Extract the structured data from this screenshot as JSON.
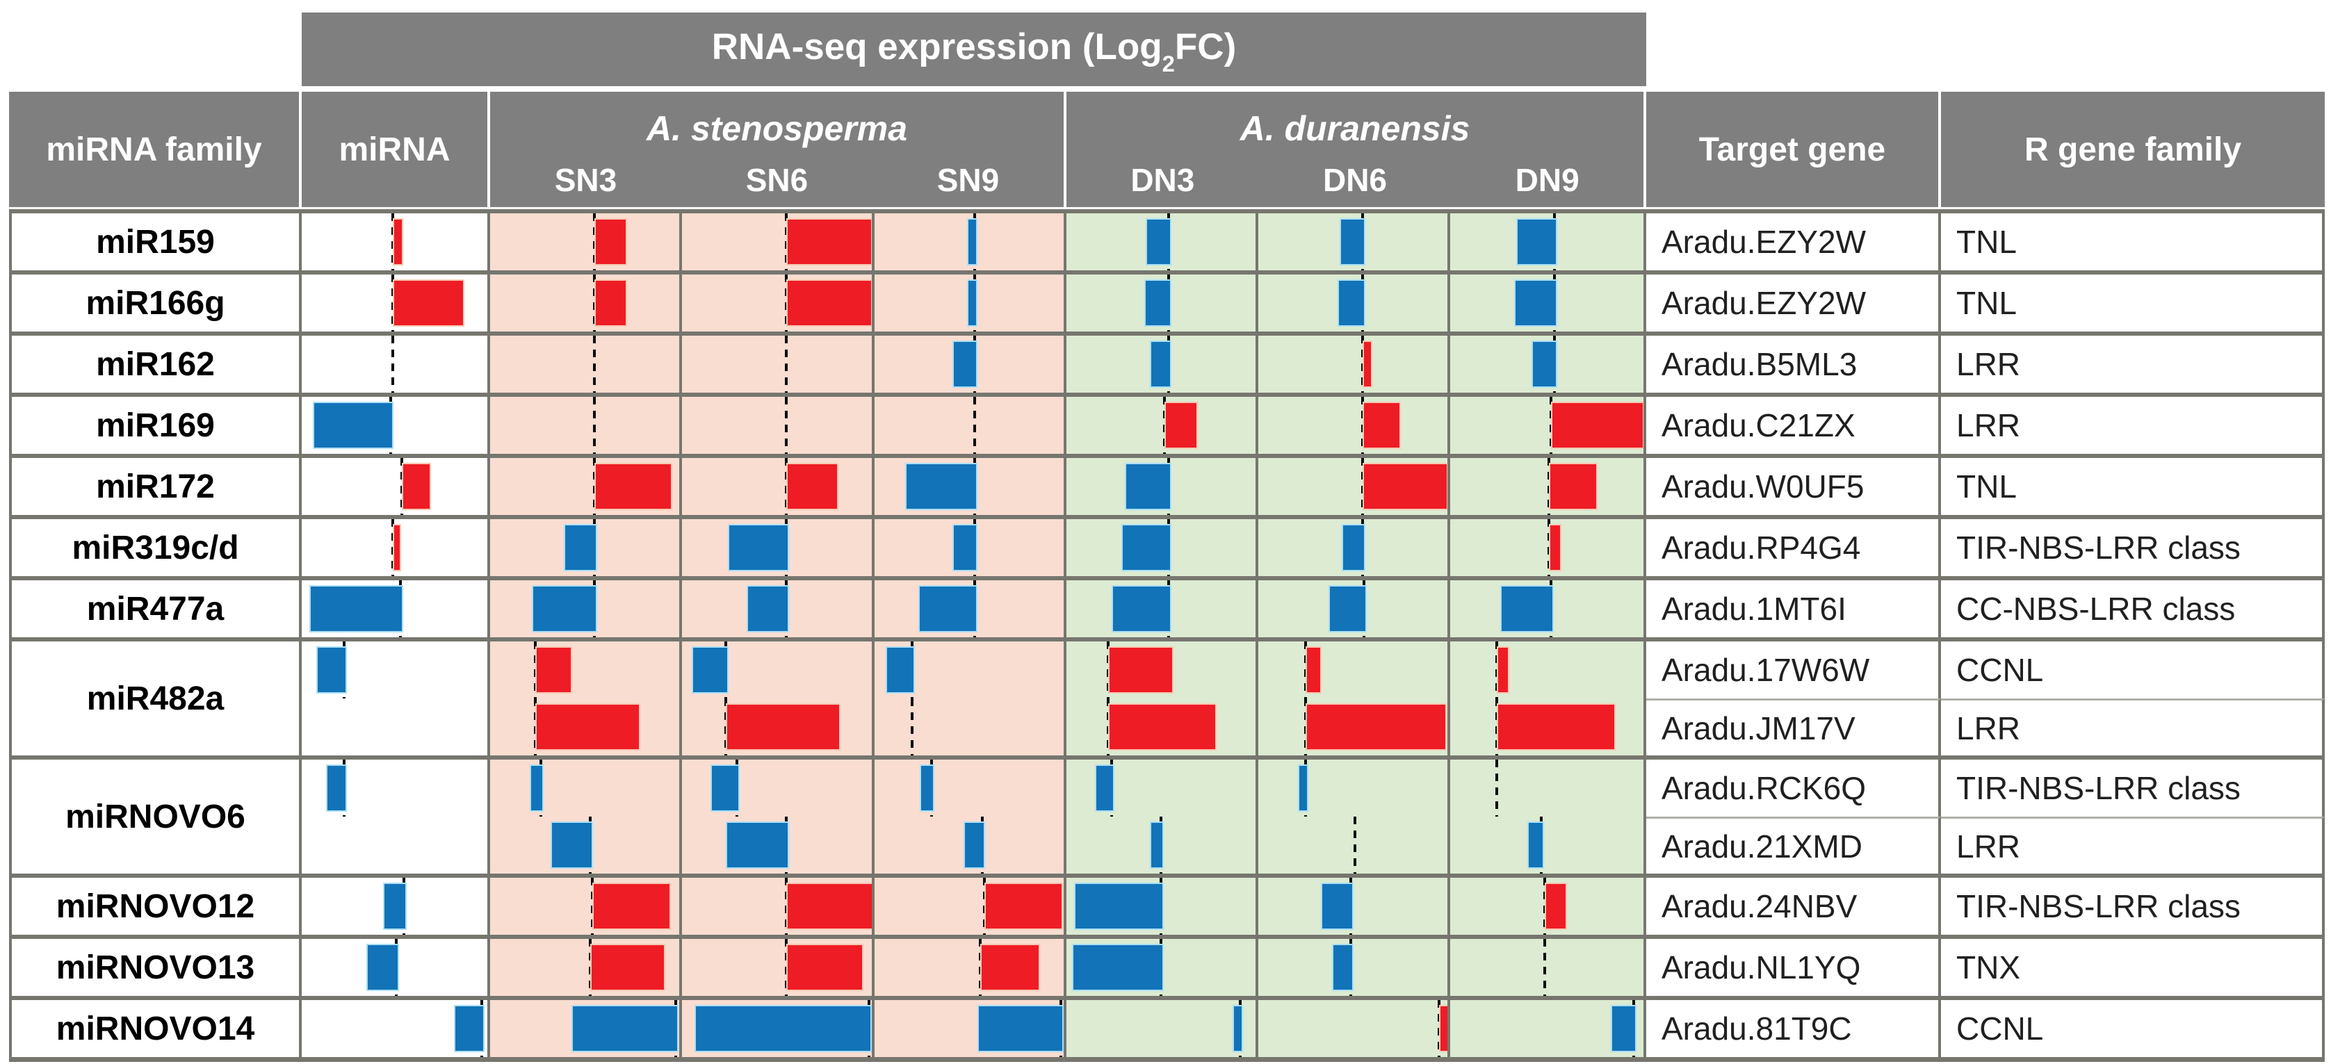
{
  "title": {
    "pre": "RNA-seq expression (Log",
    "sub": "2",
    "post": "FC)"
  },
  "headers": {
    "family": "miRNA family",
    "mirna": "miRNA",
    "species_a": "A. stenosperma",
    "species_b": "A. duranensis",
    "sn": [
      "SN3",
      "SN6",
      "SN9"
    ],
    "dn": [
      "DN3",
      "DN6",
      "DN9"
    ],
    "target": "Target gene",
    "rgene": "R gene family"
  },
  "colors": {
    "up_red": "#ee1c25",
    "down_blue": "#1273b8",
    "red_halo": "#f6c9b4",
    "blue_halo": "#abdff5",
    "stenosperma_bg": "#f9ddd1",
    "duranensis_bg": "#dcebd2",
    "header_gray": "#7f7f7f",
    "grid_gray": "#76766e"
  },
  "chart_data": {
    "type": "table",
    "description": "Table of in-cell bar charts of RNA-seq expression (Log2FC) per miRNA. Red bars extend right of the dashed zero baseline (up-regulated); blue bars extend left (down-regulated). v = signed bar length as a fraction of cell width (no numeric axis labels are shown in the figure); b = baseline position as a fraction of cell width.",
    "condition_columns": [
      "miRNA",
      "SN3",
      "SN6",
      "SN9",
      "DN3",
      "DN6",
      "DN9"
    ],
    "groups": [
      {
        "family": "miR159",
        "mirna_bar": {
          "v": 0.04,
          "b": 0.49
        },
        "rows": [
          {
            "bars": {
              "sn3": {
                "v": 0.16,
                "b": 0.55
              },
              "sn6": {
                "v": 0.44,
                "b": 0.55
              },
              "sn9": {
                "v": -0.04,
                "b": 0.53
              },
              "dn3": {
                "v": -0.12,
                "b": 0.54
              },
              "dn6": {
                "v": -0.12,
                "b": 0.55
              },
              "dn9": {
                "v": -0.2,
                "b": 0.54
              }
            },
            "target": "Aradu.EZY2W",
            "rgene": "TNL"
          }
        ]
      },
      {
        "family": "miR166g",
        "mirna_bar": {
          "v": 0.37,
          "b": 0.49
        },
        "rows": [
          {
            "bars": {
              "sn3": {
                "v": 0.16,
                "b": 0.55
              },
              "sn6": {
                "v": 0.44,
                "b": 0.55
              },
              "sn9": {
                "v": -0.04,
                "b": 0.53
              },
              "dn3": {
                "v": -0.13,
                "b": 0.54
              },
              "dn6": {
                "v": -0.13,
                "b": 0.55
              },
              "dn9": {
                "v": -0.21,
                "b": 0.54
              }
            },
            "target": "Aradu.EZY2W",
            "rgene": "TNL"
          }
        ]
      },
      {
        "family": "miR162",
        "mirna_bar": {
          "v": 0,
          "b": 0.49
        },
        "rows": [
          {
            "bars": {
              "sn3": {
                "v": 0,
                "b": 0.55
              },
              "sn6": {
                "v": 0,
                "b": 0.55
              },
              "sn9": {
                "v": -0.12,
                "b": 0.53
              },
              "dn3": {
                "v": -0.1,
                "b": 0.54
              },
              "dn6": {
                "v": 0.04,
                "b": 0.55
              },
              "dn9": {
                "v": -0.12,
                "b": 0.54
              }
            },
            "target": "Aradu.B5ML3",
            "rgene": "LRR"
          }
        ]
      },
      {
        "family": "miR169",
        "mirna_bar": {
          "v": -0.42,
          "b": 0.48
        },
        "rows": [
          {
            "bars": {
              "sn3": {
                "v": 0,
                "b": 0.55
              },
              "sn6": {
                "v": 0,
                "b": 0.55
              },
              "sn9": {
                "v": 0,
                "b": 0.53
              },
              "dn3": {
                "v": 0.16,
                "b": 0.52
              },
              "dn6": {
                "v": 0.19,
                "b": 0.55
              },
              "dn9": {
                "v": 0.47,
                "b": 0.52
              }
            },
            "target": "Aradu.C21ZX",
            "rgene": "LRR"
          }
        ]
      },
      {
        "family": "miR172",
        "mirna_bar": {
          "v": 0.14,
          "b": 0.54
        },
        "rows": [
          {
            "bars": {
              "sn3": {
                "v": 0.4,
                "b": 0.55
              },
              "sn6": {
                "v": 0.26,
                "b": 0.55
              },
              "sn9": {
                "v": -0.37,
                "b": 0.53
              },
              "dn3": {
                "v": -0.23,
                "b": 0.54
              },
              "dn6": {
                "v": 0.44,
                "b": 0.55
              },
              "dn9": {
                "v": 0.24,
                "b": 0.51
              }
            },
            "target": "Aradu.W0UF5",
            "rgene": "TNL"
          }
        ]
      },
      {
        "family": "miR319c/d",
        "mirna_bar": {
          "v": 0.03,
          "b": 0.49
        },
        "rows": [
          {
            "bars": {
              "sn3": {
                "v": -0.16,
                "b": 0.55
              },
              "sn6": {
                "v": -0.31,
                "b": 0.55
              },
              "sn9": {
                "v": -0.12,
                "b": 0.53
              },
              "dn3": {
                "v": -0.25,
                "b": 0.54
              },
              "dn6": {
                "v": -0.11,
                "b": 0.55
              },
              "dn9": {
                "v": 0.05,
                "b": 0.51
              }
            },
            "target": "Aradu.RP4G4",
            "rgene": "TIR-NBS-LRR class"
          }
        ]
      },
      {
        "family": "miR477a",
        "mirna_bar": {
          "v": -0.49,
          "b": 0.53
        },
        "rows": [
          {
            "bars": {
              "sn3": {
                "v": -0.33,
                "b": 0.55
              },
              "sn6": {
                "v": -0.21,
                "b": 0.55
              },
              "sn9": {
                "v": -0.3,
                "b": 0.53
              },
              "dn3": {
                "v": -0.3,
                "b": 0.54
              },
              "dn6": {
                "v": -0.19,
                "b": 0.56
              },
              "dn9": {
                "v": -0.26,
                "b": 0.52
              }
            },
            "target": "Aradu.1MT6I",
            "rgene": "CC-NBS-LRR class"
          }
        ]
      },
      {
        "family": "miR482a",
        "mirna_bar": {
          "v": -0.15,
          "b": 0.23
        },
        "rows": [
          {
            "bars": {
              "sn3": {
                "v": 0.18,
                "b": 0.24
              },
              "sn6": {
                "v": -0.18,
                "b": 0.23
              },
              "sn9": {
                "v": -0.14,
                "b": 0.2
              },
              "dn3": {
                "v": 0.33,
                "b": 0.22
              },
              "dn6": {
                "v": 0.07,
                "b": 0.25
              },
              "dn9": {
                "v": 0.05,
                "b": 0.24
              }
            },
            "target": "Aradu.17W6W",
            "rgene": "CCNL"
          },
          {
            "bars": {
              "sn3": {
                "v": 0.54,
                "b": 0.24
              },
              "sn6": {
                "v": 0.59,
                "b": 0.23
              },
              "sn9": {
                "v": 0,
                "b": 0.2
              },
              "dn3": {
                "v": 0.56,
                "b": 0.22
              },
              "dn6": {
                "v": 0.73,
                "b": 0.25
              },
              "dn9": {
                "v": 0.6,
                "b": 0.24
              }
            },
            "target": "Aradu.JM17V",
            "rgene": "LRR"
          }
        ]
      },
      {
        "family": "miRNOVO6",
        "mirna_bar": {
          "v": -0.1,
          "b": 0.23
        },
        "rows": [
          {
            "bars": {
              "sn3": {
                "v": -0.06,
                "b": 0.27
              },
              "sn6": {
                "v": -0.14,
                "b": 0.29
              },
              "sn9": {
                "v": -0.06,
                "b": 0.3
              },
              "dn3": {
                "v": -0.09,
                "b": 0.24
              },
              "dn6": {
                "v": -0.04,
                "b": 0.25
              },
              "dn9": {
                "v": 0,
                "b": 0.24
              }
            },
            "target": "Aradu.RCK6Q",
            "rgene": "TIR-NBS-LRR class"
          },
          {
            "bars": {
              "sn3": {
                "v": -0.21,
                "b": 0.53
              },
              "sn6": {
                "v": -0.32,
                "b": 0.55
              },
              "sn9": {
                "v": -0.1,
                "b": 0.57
              },
              "dn3": {
                "v": -0.06,
                "b": 0.5
              },
              "dn6": {
                "v": 0,
                "b": 0.51
              },
              "dn9": {
                "v": -0.07,
                "b": 0.47
              }
            },
            "target": "Aradu.21XMD",
            "rgene": "LRR"
          }
        ]
      },
      {
        "family": "miRNOVO12",
        "mirna_bar": {
          "v": -0.11,
          "b": 0.55
        },
        "rows": [
          {
            "bars": {
              "sn3": {
                "v": 0.4,
                "b": 0.54
              },
              "sn6": {
                "v": 0.45,
                "b": 0.55
              },
              "sn9": {
                "v": 0.4,
                "b": 0.58
              },
              "dn3": {
                "v": -0.46,
                "b": 0.5
              },
              "dn6": {
                "v": -0.16,
                "b": 0.49
              },
              "dn9": {
                "v": 0.1,
                "b": 0.49
              }
            },
            "target": "Aradu.24NBV",
            "rgene": "TIR-NBS-LRR class"
          }
        ]
      },
      {
        "family": "miRNOVO13",
        "mirna_bar": {
          "v": -0.16,
          "b": 0.51
        },
        "rows": [
          {
            "bars": {
              "sn3": {
                "v": 0.38,
                "b": 0.53
              },
              "sn6": {
                "v": 0.39,
                "b": 0.55
              },
              "sn9": {
                "v": 0.3,
                "b": 0.56
              },
              "dn3": {
                "v": -0.47,
                "b": 0.5
              },
              "dn6": {
                "v": -0.1,
                "b": 0.49
              },
              "dn9": {
                "v": 0,
                "b": 0.49
              }
            },
            "target": "Aradu.NL1YQ",
            "rgene": "TNX"
          }
        ]
      },
      {
        "family": "miRNOVO14",
        "mirna_bar": {
          "v": -0.15,
          "b": 0.97
        },
        "rows": [
          {
            "bars": {
              "sn3": {
                "v": -0.55,
                "b": 0.98
              },
              "sn6": {
                "v": -0.92,
                "b": 0.985
              },
              "sn9": {
                "v": -0.44,
                "b": 0.985
              },
              "dn3": {
                "v": -0.04,
                "b": 0.92
              },
              "dn6": {
                "v": 0.04,
                "b": 0.955
              },
              "dn9": {
                "v": -0.12,
                "b": 0.95
              }
            },
            "target": "Aradu.81T9C",
            "rgene": "CCNL"
          }
        ]
      }
    ]
  }
}
